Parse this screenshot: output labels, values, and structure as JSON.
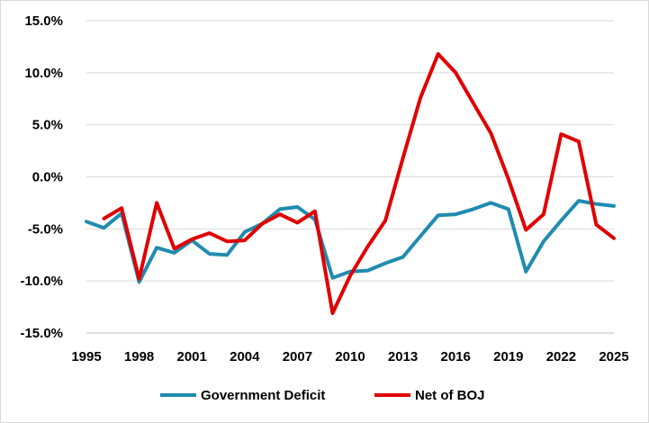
{
  "chart_data": {
    "type": "line",
    "title": "",
    "xlabel": "",
    "ylabel": "",
    "xlim": [
      1995,
      2025
    ],
    "ylim": [
      -15,
      15
    ],
    "x_ticks": [
      "1995",
      "1998",
      "2001",
      "2004",
      "2007",
      "2010",
      "2013",
      "2016",
      "2019",
      "2022",
      "2025"
    ],
    "y_ticks": [
      "15.0%",
      "10.0%",
      "5.0%",
      "0.0%",
      "-5.0%",
      "-10.0%",
      "-15.0%"
    ],
    "grid": "horizontal",
    "legend_position": "bottom",
    "series": [
      {
        "name": "Government Deficit",
        "color": "#1F8BB0",
        "x": [
          1995,
          1996,
          1997,
          1998,
          1999,
          2000,
          2001,
          2002,
          2003,
          2004,
          2005,
          2006,
          2007,
          2008,
          2009,
          2010,
          2011,
          2012,
          2013,
          2014,
          2015,
          2016,
          2017,
          2018,
          2019,
          2020,
          2021,
          2022,
          2023,
          2024,
          2025
        ],
        "values": [
          -4.3,
          -4.9,
          -3.5,
          -10.1,
          -6.8,
          -7.3,
          -6.1,
          -7.4,
          -7.5,
          -5.3,
          -4.5,
          -3.1,
          -2.9,
          -4.1,
          -9.7,
          -9.1,
          -9.0,
          -8.3,
          -7.7,
          -5.7,
          -3.7,
          -3.6,
          -3.1,
          -2.5,
          -3.1,
          -9.1,
          -6.2,
          -4.2,
          -2.3,
          -2.6,
          -2.8
        ]
      },
      {
        "name": "Net of BOJ",
        "color": "#E00000",
        "x": [
          1996,
          1997,
          1998,
          1999,
          2000,
          2001,
          2002,
          2003,
          2004,
          2005,
          2006,
          2007,
          2008,
          2009,
          2010,
          2011,
          2012,
          2013,
          2014,
          2015,
          2016,
          2017,
          2018,
          2019,
          2020,
          2021,
          2022,
          2023,
          2024,
          2025
        ],
        "values": [
          -4.0,
          -3.0,
          -9.8,
          -2.5,
          -6.9,
          -6.0,
          -5.4,
          -6.2,
          -6.1,
          -4.5,
          -3.6,
          -4.4,
          -3.3,
          -13.1,
          -9.5,
          -6.7,
          -4.2,
          1.8,
          7.6,
          11.8,
          10.0,
          7.1,
          4.2,
          -0.2,
          -5.1,
          -3.6,
          4.1,
          3.4,
          -4.6,
          -5.9
        ]
      }
    ]
  }
}
